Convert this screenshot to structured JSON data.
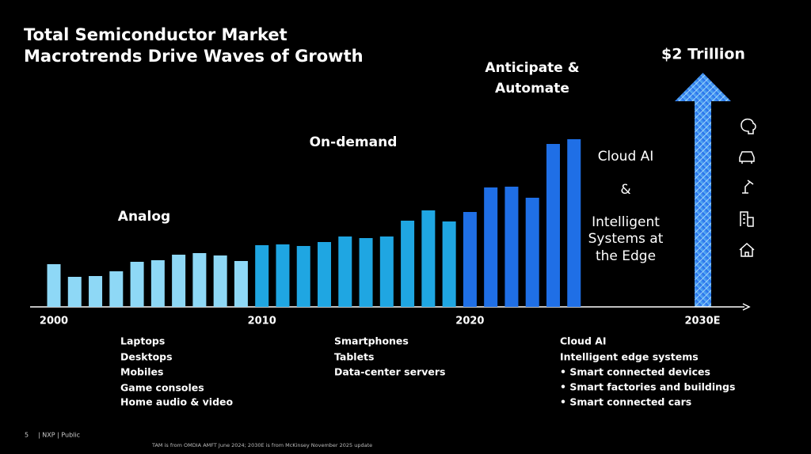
{
  "title": [
    "Total Semiconductor Market",
    "Macrotrends Drive Waves of Growth"
  ],
  "chart_data": {
    "type": "bar",
    "categories": [
      "2000",
      null,
      null,
      null,
      null,
      null,
      null,
      null,
      null,
      null,
      "2010",
      null,
      null,
      null,
      null,
      null,
      null,
      null,
      null,
      null,
      "2020",
      null,
      null,
      null,
      null,
      null
    ],
    "values": [
      54,
      38,
      39,
      45,
      57,
      59,
      66,
      68,
      65,
      58,
      78,
      79,
      77,
      82,
      89,
      87,
      89,
      109,
      122,
      108,
      120,
      151,
      152,
      138,
      206,
      212
    ],
    "colors": [
      "#8ed8f6",
      "#8ed8f6",
      "#8ed8f6",
      "#8ed8f6",
      "#8ed8f6",
      "#8ed8f6",
      "#8ed8f6",
      "#8ed8f6",
      "#8ed8f6",
      "#8ed8f6",
      "#1fa6e2",
      "#1fa6e2",
      "#1fa6e2",
      "#1fa6e2",
      "#1fa6e2",
      "#1fa6e2",
      "#1fa6e2",
      "#1fa6e2",
      "#1fa6e2",
      "#1fa6e2",
      "#1f6fe6",
      "#1f6fe6",
      "#1f6fe6",
      "#1f6fe6",
      "#1f6fe6",
      "#1f6fe6"
    ],
    "ylim": [
      0,
      250
    ]
  },
  "forecast": {
    "year": "2030E",
    "label": "$2 Trillion"
  },
  "eras": {
    "analog": "Analog",
    "on_demand": "On-demand",
    "automate": [
      "Anticipate &",
      "Automate"
    ]
  },
  "edge_text": [
    "Cloud AI",
    "&",
    "Intelligent",
    "Systems at",
    "the Edge"
  ],
  "drivers": [
    [
      "Laptops",
      "Desktops",
      "Mobiles",
      "Game consoles",
      "Home audio & video"
    ],
    [
      "Smartphones",
      "Tablets",
      "Data-center servers"
    ],
    [
      "Cloud AI",
      "Intelligent edge systems",
      "• Smart connected devices",
      "• Smart factories and buildings",
      "• Smart connected cars"
    ]
  ],
  "footer": {
    "page": "5",
    "label": "| NXP | Public",
    "source": "TAM is from OMDIA AMFT June 2024; 2030E is from McKinsey November 2025 update"
  }
}
